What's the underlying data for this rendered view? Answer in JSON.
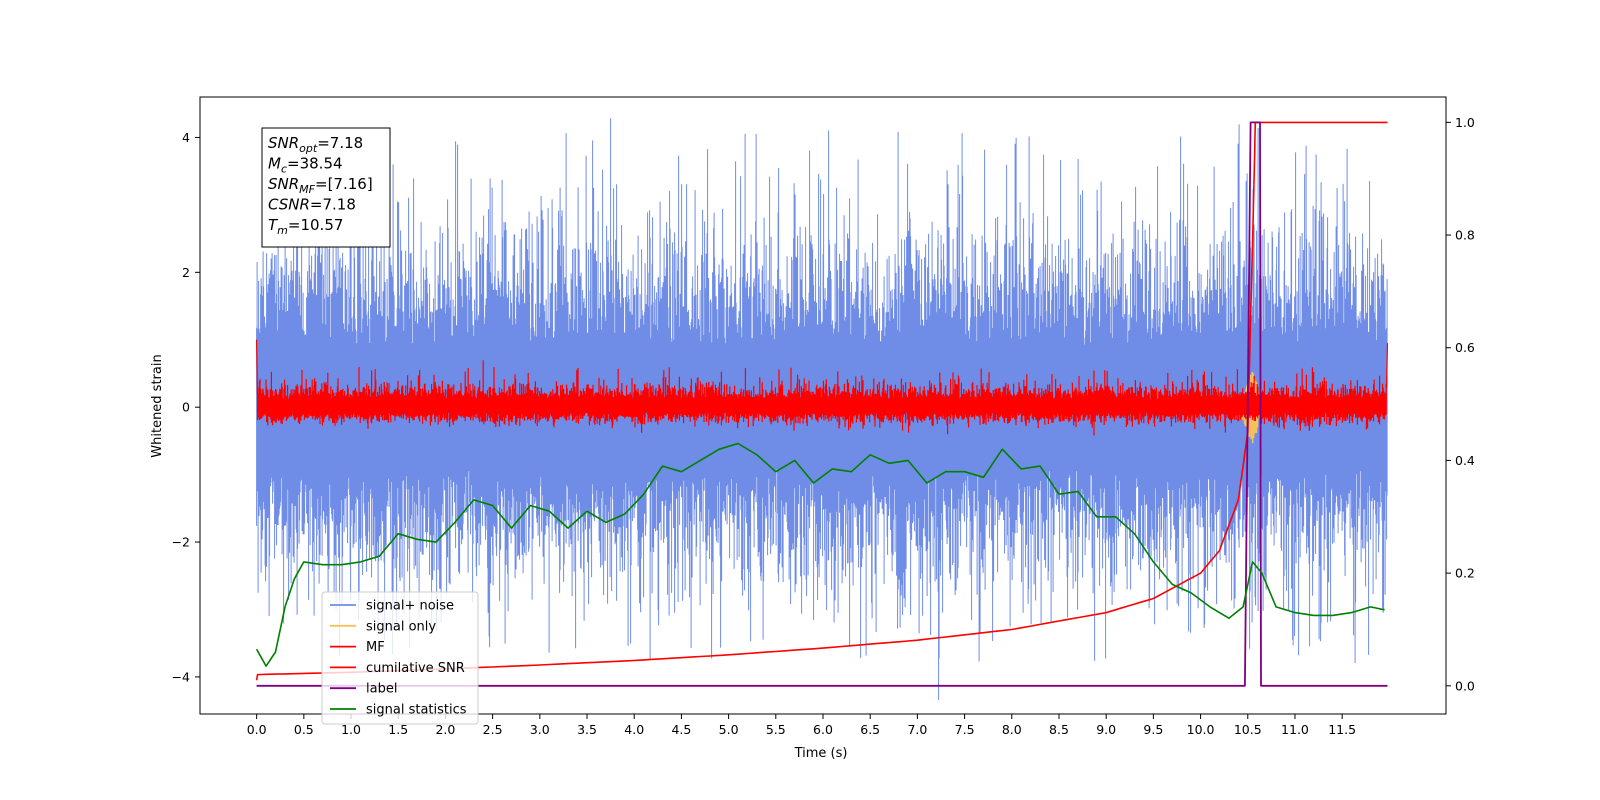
{
  "chart_data": {
    "type": "line",
    "xlabel": "Time (s)",
    "ylabel": "Whitened strain",
    "xlim": [
      -0.6,
      12.6
    ],
    "ylim": [
      -4.55,
      4.6
    ],
    "y2lim": [
      -0.05,
      1.045
    ],
    "grid": false,
    "legend_position": "lower-left",
    "x_ticks": [
      "0.0",
      "0.5",
      "1.0",
      "1.5",
      "2.0",
      "2.5",
      "3.0",
      "3.5",
      "4.0",
      "4.5",
      "5.0",
      "5.5",
      "6.0",
      "6.5",
      "7.0",
      "7.5",
      "8.0",
      "8.5",
      "9.0",
      "9.5",
      "10.0",
      "10.5",
      "11.0",
      "11.5"
    ],
    "y_ticks": [
      "−4",
      "−2",
      "0",
      "2",
      "4"
    ],
    "y2_ticks": [
      "0.0",
      "0.2",
      "0.4",
      "0.6",
      "0.8",
      "1.0"
    ],
    "annotation": [
      {
        "sym": "SNR",
        "sub": "opt",
        "val": "=7.18"
      },
      {
        "sym": "M",
        "sub": "c",
        "val": "=38.54"
      },
      {
        "sym": "SNR",
        "sub": "MF",
        "val": "=[7.16]"
      },
      {
        "sym": "CSNR",
        "sub": "",
        "val": "=7.18"
      },
      {
        "sym": "T",
        "sub": "m",
        "val": "=10.57"
      }
    ],
    "series": [
      {
        "name": "signal+ noise",
        "color": "#6f8de6",
        "axis": "left",
        "description_values": "noise, x 0.0–11.98, amplitude about ±4"
      },
      {
        "name": "signal only",
        "color": "#f5c25a",
        "axis": "left",
        "values": {
          "peak_time": 10.57,
          "peak_amplitude": 0.55
        }
      },
      {
        "name": "MF",
        "color": "#ff0000",
        "axis": "left",
        "values": {
          "x_range": [
            0.0,
            11.98
          ],
          "amplitude": 0.3
        }
      },
      {
        "name": "cumilative SNR",
        "color": "#ff0000",
        "axis": "right",
        "x": [
          0.0,
          0.01,
          1.0,
          2.0,
          3.0,
          4.0,
          5.0,
          6.0,
          7.0,
          8.0,
          9.0,
          9.5,
          10.0,
          10.2,
          10.4,
          10.5,
          10.56,
          10.58,
          11.98
        ],
        "y": [
          0.01,
          0.02,
          0.024,
          0.03,
          0.037,
          0.045,
          0.055,
          0.067,
          0.081,
          0.1,
          0.13,
          0.155,
          0.2,
          0.24,
          0.33,
          0.45,
          0.85,
          1.0,
          1.0
        ]
      },
      {
        "name": "label",
        "color": "#800080",
        "axis": "right",
        "x": [
          0.0,
          10.47,
          10.53,
          10.63,
          10.64,
          11.98
        ],
        "y": [
          0.0,
          0.0,
          1.0,
          1.0,
          0.0,
          0.0
        ]
      },
      {
        "name": "signal statistics",
        "color": "#008000",
        "axis": "right",
        "x": [
          0.0,
          0.1,
          0.2,
          0.3,
          0.4,
          0.5,
          0.7,
          0.9,
          1.1,
          1.3,
          1.5,
          1.7,
          1.9,
          2.1,
          2.3,
          2.5,
          2.7,
          2.9,
          3.1,
          3.3,
          3.5,
          3.7,
          3.9,
          4.1,
          4.3,
          4.5,
          4.7,
          4.9,
          5.1,
          5.3,
          5.5,
          5.7,
          5.9,
          6.1,
          6.3,
          6.5,
          6.7,
          6.9,
          7.1,
          7.3,
          7.5,
          7.7,
          7.9,
          8.1,
          8.3,
          8.5,
          8.7,
          8.9,
          9.1,
          9.3,
          9.5,
          9.7,
          9.9,
          10.1,
          10.3,
          10.45,
          10.55,
          10.65,
          10.8,
          11.0,
          11.2,
          11.4,
          11.6,
          11.8,
          11.95
        ],
        "y": [
          0.065,
          0.035,
          0.06,
          0.14,
          0.19,
          0.22,
          0.215,
          0.215,
          0.22,
          0.23,
          0.27,
          0.26,
          0.255,
          0.29,
          0.33,
          0.32,
          0.28,
          0.32,
          0.31,
          0.28,
          0.31,
          0.29,
          0.305,
          0.34,
          0.39,
          0.38,
          0.4,
          0.42,
          0.43,
          0.41,
          0.38,
          0.4,
          0.36,
          0.385,
          0.38,
          0.41,
          0.395,
          0.4,
          0.36,
          0.38,
          0.38,
          0.37,
          0.42,
          0.385,
          0.39,
          0.34,
          0.345,
          0.3,
          0.3,
          0.27,
          0.22,
          0.18,
          0.165,
          0.14,
          0.12,
          0.14,
          0.22,
          0.2,
          0.14,
          0.13,
          0.125,
          0.125,
          0.13,
          0.14,
          0.135
        ]
      }
    ]
  }
}
